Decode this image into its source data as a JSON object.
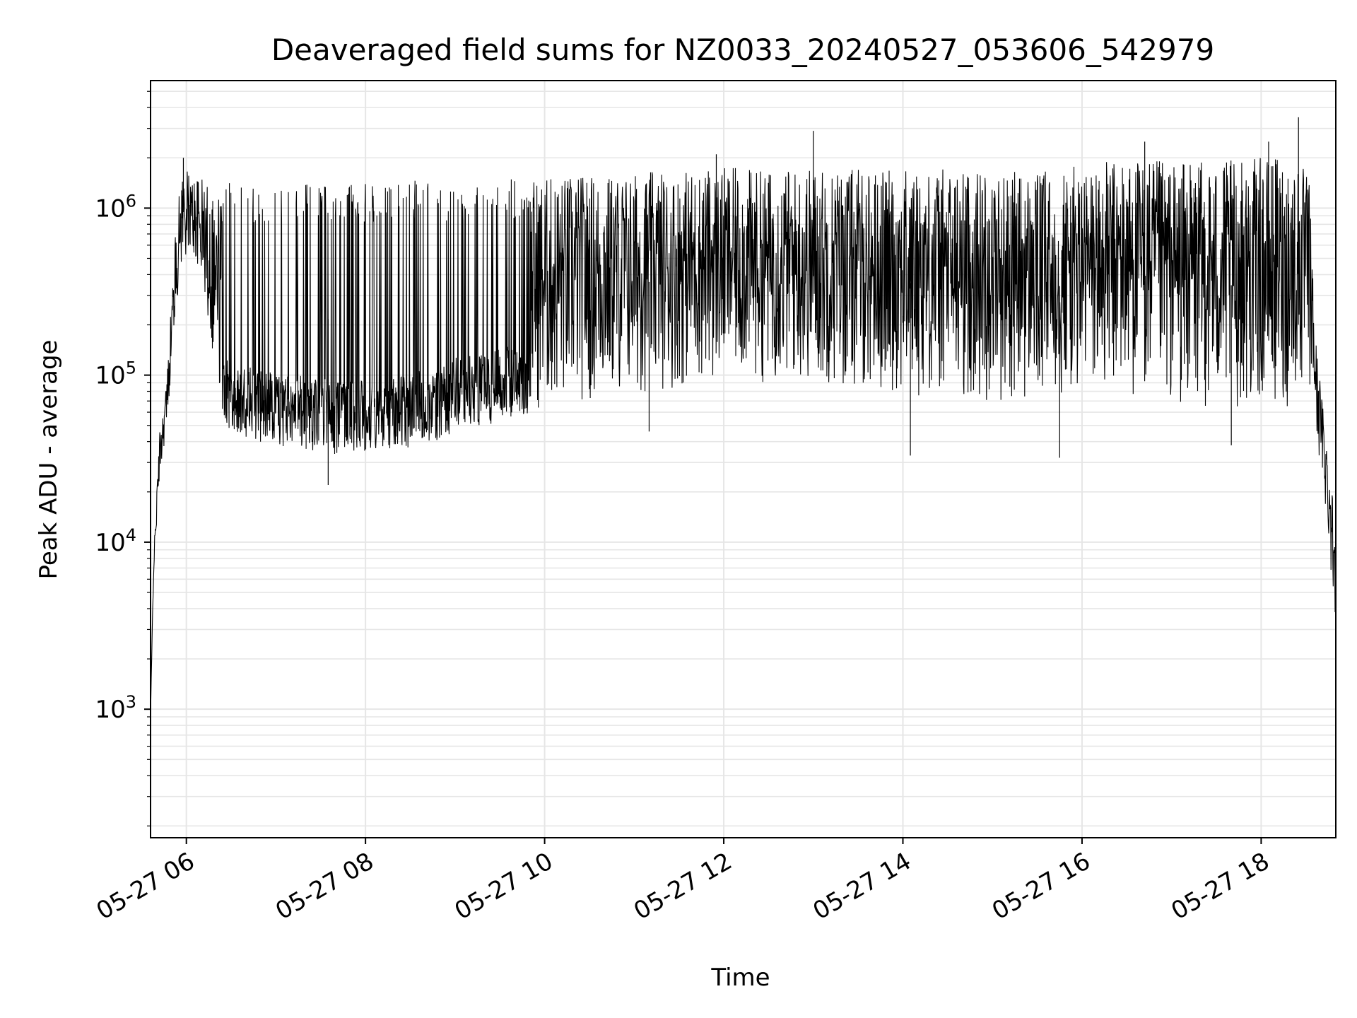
{
  "chart_data": {
    "type": "line",
    "title": "Deaveraged field sums for NZ0033_20240527_053606_542979",
    "xlabel": "Time",
    "ylabel": "Peak ADU - average",
    "x_range": [
      "2024-05-27 05:36",
      "2024-05-27 18:50"
    ],
    "y_scale": "log",
    "ylim": [
      170,
      5800000
    ],
    "x_ticks": [
      {
        "value": "2024-05-27 06:00",
        "label": "05-27 06"
      },
      {
        "value": "2024-05-27 08:00",
        "label": "05-27 08"
      },
      {
        "value": "2024-05-27 10:00",
        "label": "05-27 10"
      },
      {
        "value": "2024-05-27 12:00",
        "label": "05-27 12"
      },
      {
        "value": "2024-05-27 14:00",
        "label": "05-27 14"
      },
      {
        "value": "2024-05-27 16:00",
        "label": "05-27 16"
      },
      {
        "value": "2024-05-27 18:00",
        "label": "05-27 18"
      }
    ],
    "y_ticks": [
      {
        "value": 1000,
        "base": "10",
        "exp": "3"
      },
      {
        "value": 10000,
        "base": "10",
        "exp": "4"
      },
      {
        "value": 100000,
        "base": "10",
        "exp": "5"
      },
      {
        "value": 1000000,
        "base": "10",
        "exp": "6"
      }
    ],
    "grid": true,
    "line_color": "#000000",
    "grid_color": "#e6e6e6",
    "series": [
      {
        "envelope": {
          "time": [
            "2024-05-27 05:36",
            "2024-05-27 05:38",
            "2024-05-27 05:42",
            "2024-05-27 05:47",
            "2024-05-27 05:52",
            "2024-05-27 05:57",
            "2024-05-27 06:03",
            "2024-05-27 06:10",
            "2024-05-27 06:17",
            "2024-05-27 06:24",
            "2024-05-27 06:30",
            "2024-05-27 06:45",
            "2024-05-27 07:00",
            "2024-05-27 07:20",
            "2024-05-27 07:40",
            "2024-05-27 08:00",
            "2024-05-27 08:20",
            "2024-05-27 08:40",
            "2024-05-27 09:00",
            "2024-05-27 09:20",
            "2024-05-27 09:40",
            "2024-05-27 10:00",
            "2024-05-27 10:20",
            "2024-05-27 10:40",
            "2024-05-27 11:00",
            "2024-05-27 11:30",
            "2024-05-27 12:00",
            "2024-05-27 12:30",
            "2024-05-27 13:00",
            "2024-05-27 13:30",
            "2024-05-27 14:00",
            "2024-05-27 14:30",
            "2024-05-27 15:00",
            "2024-05-27 15:30",
            "2024-05-27 16:00",
            "2024-05-27 16:30",
            "2024-05-27 17:00",
            "2024-05-27 17:30",
            "2024-05-27 18:00",
            "2024-05-27 18:20",
            "2024-05-27 18:32",
            "2024-05-27 18:37",
            "2024-05-27 18:42",
            "2024-05-27 18:47",
            "2024-05-27 18:50"
          ],
          "low": [
            900,
            6000,
            25000,
            50000,
            200000,
            500000,
            550000,
            400000,
            150000,
            60000,
            45000,
            40000,
            38000,
            35000,
            33000,
            34000,
            36000,
            38000,
            45000,
            50000,
            55000,
            60000,
            65000,
            70000,
            75000,
            85000,
            95000,
            90000,
            85000,
            80000,
            75000,
            70000,
            70000,
            65000,
            70000,
            75000,
            65000,
            60000,
            65000,
            60000,
            80000,
            40000,
            20000,
            6000,
            3000
          ],
          "high": [
            900,
            8000,
            45000,
            100000,
            600000,
            1800000,
            1600000,
            1500000,
            1500000,
            1400000,
            1450000,
            1450000,
            1400000,
            1400000,
            1400000,
            1450000,
            1500000,
            1450000,
            1500000,
            1450000,
            1500000,
            1550000,
            1600000,
            1600000,
            1650000,
            1700000,
            1750000,
            1700000,
            1800000,
            1750000,
            1700000,
            1750000,
            1700000,
            1650000,
            1800000,
            2000000,
            1900000,
            1900000,
            2000000,
            2100000,
            1600000,
            150000,
            60000,
            25000,
            12000
          ]
        },
        "bursts": {
          "before": [
            "2024-05-27 06:24",
            "2024-05-27 09:50"
          ],
          "after": [
            "2024-05-27 09:50",
            "2024-05-27 18:35"
          ]
        },
        "spikes": [
          {
            "time": "2024-05-27 05:58",
            "value": 2000000
          },
          {
            "time": "2024-05-27 11:55",
            "value": 2100000
          },
          {
            "time": "2024-05-27 13:00",
            "value": 2900000
          },
          {
            "time": "2024-05-27 14:05",
            "value": 33000
          },
          {
            "time": "2024-05-27 15:45",
            "value": 32000
          },
          {
            "time": "2024-05-27 16:42",
            "value": 2500000
          },
          {
            "time": "2024-05-27 18:05",
            "value": 2500000
          },
          {
            "time": "2024-05-27 18:25",
            "value": 3500000
          },
          {
            "time": "2024-05-27 07:35",
            "value": 22000
          },
          {
            "time": "2024-05-27 17:40",
            "value": 38000
          },
          {
            "time": "2024-05-27 11:10",
            "value": 46000
          }
        ]
      }
    ]
  }
}
